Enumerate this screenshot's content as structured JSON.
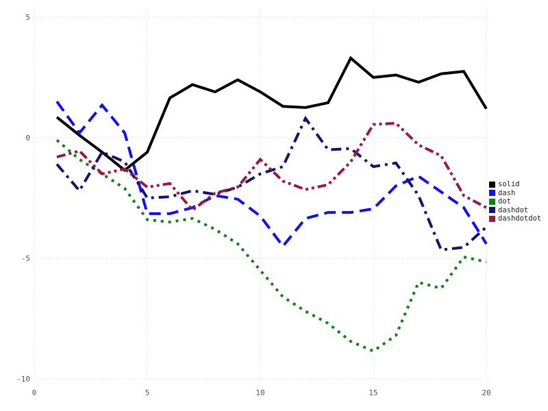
{
  "chart_data": {
    "type": "line",
    "title": "",
    "xlabel": "",
    "ylabel": "",
    "x": [
      1,
      2,
      3,
      4,
      5,
      6,
      7,
      8,
      9,
      10,
      11,
      12,
      13,
      14,
      15,
      16,
      17,
      18,
      19,
      20
    ],
    "series": [
      {
        "name": "solid",
        "color": "#000000",
        "line_style": "solid",
        "values": [
          0.85,
          0.1,
          -0.6,
          -1.35,
          -0.6,
          1.65,
          2.2,
          1.9,
          2.4,
          1.9,
          1.3,
          1.25,
          1.45,
          3.3,
          2.5,
          2.6,
          2.3,
          2.65,
          2.75,
          1.2
        ]
      },
      {
        "name": "dash",
        "color": "#0f0fff",
        "line_style": "dash",
        "values": [
          1.5,
          0.2,
          1.35,
          0.2,
          -3.15,
          -3.15,
          -2.9,
          -2.4,
          -2.55,
          -3.25,
          -4.5,
          -3.35,
          -3.1,
          -3.1,
          -2.95,
          -2.0,
          -1.6,
          -2.25,
          -2.9,
          -4.4
        ]
      },
      {
        "name": "dot",
        "color": "#128012",
        "line_style": "dot",
        "values": [
          -0.1,
          -0.9,
          -1.5,
          -2.1,
          -3.4,
          -3.5,
          -3.35,
          -3.8,
          -4.4,
          -5.5,
          -6.6,
          -7.2,
          -7.7,
          -8.45,
          -8.85,
          -8.2,
          -6.0,
          -6.25,
          -4.95,
          -5.15
        ]
      },
      {
        "name": "dashdot",
        "color": "#14146e",
        "line_style": "dashdot",
        "values": [
          -1.1,
          -2.2,
          -0.6,
          -1.0,
          -2.5,
          -2.45,
          -2.2,
          -2.35,
          -2.05,
          -1.5,
          -1.2,
          0.8,
          -0.5,
          -0.45,
          -1.2,
          -1.05,
          -2.4,
          -4.65,
          -4.55,
          -3.7
        ]
      },
      {
        "name": "dashdotdot",
        "color": "#9b1845",
        "line_style": "dashdotdot",
        "values": [
          -0.8,
          -0.55,
          -1.5,
          -1.3,
          -2.05,
          -1.9,
          -3.0,
          -2.3,
          -2.05,
          -0.9,
          -1.8,
          -2.15,
          -1.95,
          -1.0,
          0.55,
          0.6,
          -0.3,
          -0.75,
          -2.4,
          -2.9
        ]
      }
    ],
    "x_ticks": [
      "0",
      "5",
      "10",
      "15",
      "20"
    ],
    "x_tick_values": [
      0,
      5,
      10,
      15,
      20
    ],
    "y_ticks": [
      "5",
      "0",
      "-5",
      "-10"
    ],
    "y_tick_values": [
      5,
      0,
      -5,
      -10
    ],
    "xlim": [
      0,
      20.3
    ],
    "ylim": [
      -10.2,
      5.3
    ],
    "grid": "dotted",
    "legend_position": "right",
    "legend_entries": [
      "solid",
      "dash",
      "dot",
      "dashdot",
      "dashdotdot"
    ]
  },
  "style": {
    "grid_color": "#d8d8d8",
    "tick_label_color": "#555555",
    "legend_text_color": "#1a1a1a",
    "background": "#ffffff"
  }
}
